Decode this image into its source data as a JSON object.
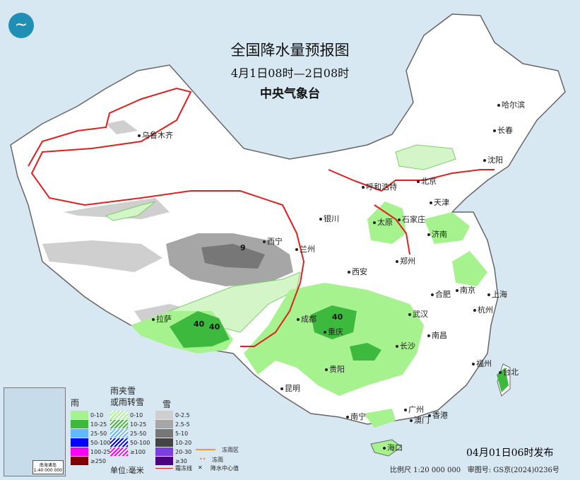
{
  "title": "全国降水量预报图",
  "period": "4月1日08时—2日08时",
  "issuer": "中央气象台",
  "logo_icon": "cma-logo",
  "issue_time": "04月01日06时发布",
  "scale": "比例尺 1:20 000 000",
  "map_approval": "审图号: GS京(2024)0236号",
  "cities": [
    "乌鲁木齐",
    "哈尔滨",
    "长春",
    "沈阳",
    "北京",
    "天津",
    "呼和浩特",
    "石家庄",
    "太原",
    "济南",
    "银川",
    "西宁",
    "兰州",
    "西安",
    "郑州",
    "合肥",
    "南京",
    "上海",
    "杭州",
    "武汉",
    "成都",
    "重庆",
    "拉萨",
    "长沙",
    "南昌",
    "贵阳",
    "福州",
    "台北",
    "昆明",
    "南宁",
    "广州",
    "澳门",
    "香港",
    "海口"
  ],
  "precip_centers": [
    "9",
    "40",
    "40",
    "40"
  ],
  "inset": {
    "caption": "南海诸岛",
    "scale": "1:40 000 000"
  },
  "legend": {
    "rain": {
      "title": "雨",
      "items": [
        {
          "label": "0-10",
          "color": "#a6f28f"
        },
        {
          "label": "10-25",
          "color": "#3dba3d"
        },
        {
          "label": "25-50",
          "color": "#61b8ff"
        },
        {
          "label": "50-100",
          "color": "#0000ff"
        },
        {
          "label": "100-250",
          "color": "#fa00fa"
        },
        {
          "label": "≥250",
          "color": "#800000"
        }
      ]
    },
    "sleet": {
      "title": "雨夹雪\n或雨转雪",
      "items": [
        {
          "label": "0-10",
          "color": "#a6f28f"
        },
        {
          "label": "10-25",
          "color": "#3dba3d"
        },
        {
          "label": "25-50",
          "color": "#61b8ff"
        },
        {
          "label": "50-100",
          "color": "#0000ff"
        },
        {
          "label": "≥100",
          "color": "#fa00fa"
        }
      ]
    },
    "snow": {
      "title": "雪",
      "items": [
        {
          "label": "0-2.5",
          "color": "#cfcfcf"
        },
        {
          "label": "2.5-5",
          "color": "#a6a6a6"
        },
        {
          "label": "5-10",
          "color": "#777777"
        },
        {
          "label": "10-20",
          "color": "#444444"
        },
        {
          "label": "20-30",
          "color": "#7b3fe0"
        },
        {
          "label": "≥30",
          "color": "#4b0082"
        }
      ]
    },
    "unit": "单位:毫米",
    "freezing_rain_area": "冻雨区",
    "freezing_rain": "冻雨",
    "frost_line": "霜冻线",
    "precip_center": "降水中心值"
  }
}
